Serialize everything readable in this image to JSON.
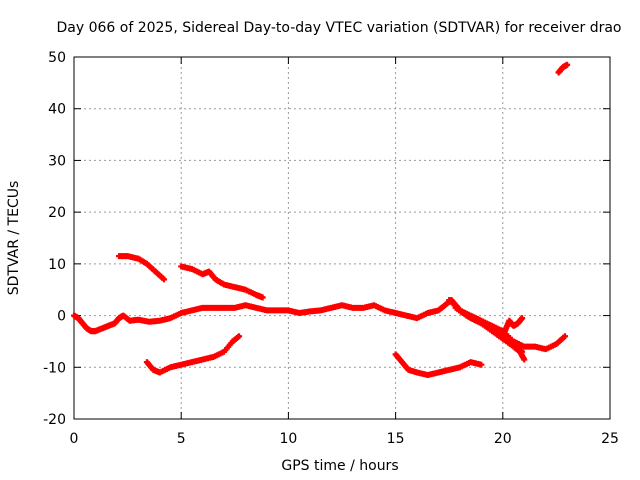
{
  "chart_data": {
    "type": "scatter",
    "title": "Day 066 of 2025, Sidereal Day-to-day VTEC variation (SDTVAR) for receiver drao",
    "xlabel": "GPS time / hours",
    "ylabel": "SDTVAR / TECUs",
    "xlim": [
      0,
      25
    ],
    "ylim": [
      -20,
      50
    ],
    "xticks": [
      0,
      5,
      10,
      15,
      20,
      25
    ],
    "yticks": [
      -20,
      -10,
      0,
      10,
      20,
      30,
      40,
      50
    ],
    "grid": true,
    "marker_color": "#ff0000",
    "series": [
      {
        "name": "main-band",
        "points": [
          [
            0,
            0
          ],
          [
            0.2,
            -0.5
          ],
          [
            0.4,
            -1.5
          ],
          [
            0.6,
            -2.5
          ],
          [
            0.8,
            -3
          ],
          [
            1.0,
            -3
          ],
          [
            1.3,
            -2.5
          ],
          [
            1.6,
            -2
          ],
          [
            1.9,
            -1.5
          ],
          [
            2.1,
            -0.5
          ],
          [
            2.3,
            0
          ],
          [
            2.6,
            -1
          ],
          [
            3.0,
            -0.8
          ],
          [
            3.5,
            -1.2
          ],
          [
            4.0,
            -1
          ],
          [
            4.5,
            -0.5
          ],
          [
            5.0,
            0.5
          ],
          [
            5.5,
            1
          ],
          [
            6.0,
            1.5
          ],
          [
            6.5,
            1.5
          ],
          [
            7.0,
            1.5
          ],
          [
            7.5,
            1.5
          ],
          [
            8.0,
            2
          ],
          [
            8.5,
            1.5
          ],
          [
            9.0,
            1
          ],
          [
            9.5,
            1
          ],
          [
            10.0,
            1
          ],
          [
            10.5,
            0.5
          ],
          [
            11.0,
            0.8
          ],
          [
            11.5,
            1
          ],
          [
            12.0,
            1.5
          ],
          [
            12.5,
            2
          ],
          [
            13.0,
            1.5
          ],
          [
            13.5,
            1.5
          ],
          [
            14.0,
            2
          ],
          [
            14.5,
            1
          ],
          [
            15.0,
            0.5
          ],
          [
            15.5,
            0
          ],
          [
            16.0,
            -0.5
          ],
          [
            16.5,
            0.5
          ],
          [
            17.0,
            1
          ],
          [
            17.3,
            2
          ],
          [
            17.6,
            3
          ],
          [
            17.8,
            2
          ],
          [
            18.0,
            1
          ],
          [
            18.5,
            0
          ],
          [
            19.0,
            -1
          ],
          [
            19.5,
            -2
          ],
          [
            20.0,
            -3
          ],
          [
            20.5,
            -5
          ],
          [
            21.0,
            -6
          ],
          [
            21.5,
            -6
          ],
          [
            22.0,
            -6.5
          ],
          [
            22.5,
            -5.5
          ],
          [
            22.9,
            -4
          ]
        ]
      },
      {
        "name": "descending-branch-a",
        "points": [
          [
            17.5,
            3
          ],
          [
            18.0,
            1
          ],
          [
            18.5,
            -0.5
          ],
          [
            19.0,
            -1.5
          ],
          [
            19.5,
            -3
          ],
          [
            20.0,
            -4.5
          ],
          [
            20.5,
            -6
          ],
          [
            20.8,
            -7
          ],
          [
            21.0,
            -8.5
          ]
        ]
      },
      {
        "name": "descending-branch-b",
        "points": [
          [
            17.8,
            1.5
          ],
          [
            18.3,
            0
          ],
          [
            18.8,
            -1
          ],
          [
            19.3,
            -2
          ],
          [
            19.8,
            -3
          ],
          [
            20.2,
            -4
          ],
          [
            20.6,
            -6
          ],
          [
            20.9,
            -7
          ]
        ]
      },
      {
        "name": "spike-near-20",
        "points": [
          [
            20.1,
            -3
          ],
          [
            20.3,
            -1
          ],
          [
            20.5,
            -2
          ],
          [
            20.7,
            -1.5
          ],
          [
            20.9,
            -0.5
          ]
        ]
      },
      {
        "name": "upper-arc-2",
        "points": [
          [
            2.1,
            11.5
          ],
          [
            2.5,
            11.5
          ],
          [
            3.0,
            11
          ],
          [
            3.4,
            10
          ],
          [
            3.8,
            8.5
          ],
          [
            4.2,
            7
          ]
        ]
      },
      {
        "name": "upper-arc-5",
        "points": [
          [
            5.0,
            9.5
          ],
          [
            5.5,
            9
          ],
          [
            6.0,
            8
          ],
          [
            6.3,
            8.5
          ],
          [
            6.6,
            7
          ],
          [
            7.0,
            6
          ],
          [
            7.5,
            5.5
          ],
          [
            8.0,
            5
          ],
          [
            8.5,
            4
          ],
          [
            8.8,
            3.5
          ]
        ]
      },
      {
        "name": "lower-arc-4",
        "points": [
          [
            3.4,
            -9
          ],
          [
            3.7,
            -10.5
          ],
          [
            4.0,
            -11
          ],
          [
            4.5,
            -10
          ],
          [
            5.0,
            -9.5
          ],
          [
            5.5,
            -9
          ],
          [
            6.0,
            -8.5
          ],
          [
            6.5,
            -8
          ],
          [
            7.0,
            -7
          ],
          [
            7.4,
            -5
          ],
          [
            7.7,
            -4
          ]
        ]
      },
      {
        "name": "lower-arc-15",
        "points": [
          [
            15.0,
            -7.5
          ],
          [
            15.3,
            -9
          ],
          [
            15.6,
            -10.5
          ],
          [
            16.0,
            -11
          ],
          [
            16.5,
            -11.5
          ],
          [
            17.0,
            -11
          ],
          [
            17.5,
            -10.5
          ],
          [
            18.0,
            -10
          ],
          [
            18.5,
            -9
          ],
          [
            19.0,
            -9.5
          ]
        ]
      },
      {
        "name": "top-fragment",
        "points": [
          [
            22.6,
            47
          ],
          [
            22.8,
            48
          ],
          [
            23.0,
            48.5
          ]
        ]
      }
    ]
  }
}
